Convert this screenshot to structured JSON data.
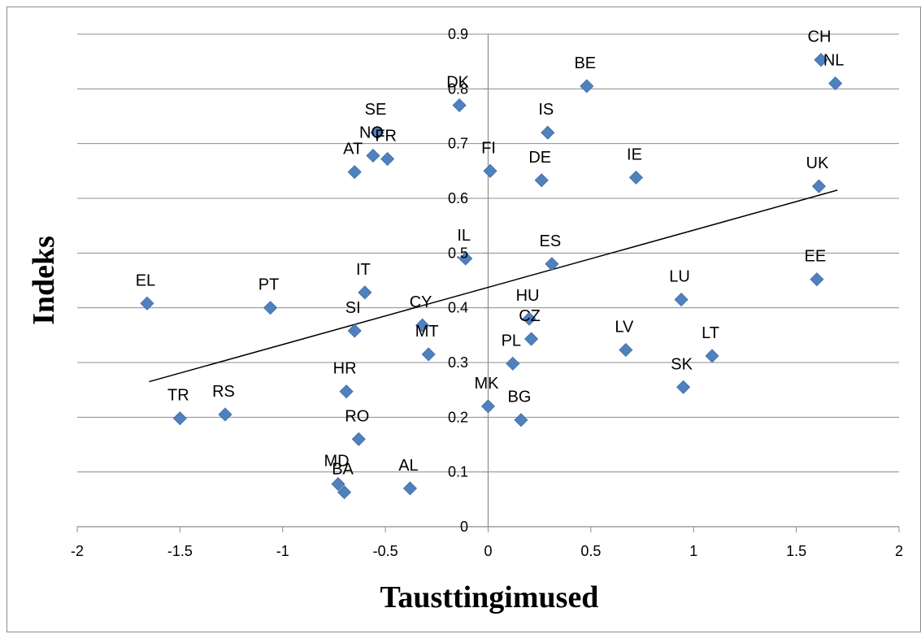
{
  "chart_data": {
    "type": "scatter",
    "title": "",
    "xlabel": "Tausttingimused",
    "ylabel": "Indeks",
    "xlim": [
      -2,
      2
    ],
    "ylim": [
      0,
      0.9
    ],
    "x_ticks": [
      "-2",
      "-1.5",
      "-1",
      "-0.5",
      "0",
      "0.5",
      "1",
      "1.5",
      "2"
    ],
    "y_ticks": [
      "0",
      "0.1",
      "0.2",
      "0.3",
      "0.4",
      "0.5",
      "0.6",
      "0.7",
      "0.8",
      "0.9"
    ],
    "grid": "horizontal",
    "marker_color": "#4f81bd",
    "trendline": {
      "x": [
        -1.65,
        1.7
      ],
      "y": [
        0.265,
        0.615
      ],
      "color": "#000000"
    },
    "points": [
      {
        "label": "CH",
        "x": 1.62,
        "y": 0.853
      },
      {
        "label": "NL",
        "x": 1.69,
        "y": 0.81
      },
      {
        "label": "BE",
        "x": 0.48,
        "y": 0.805
      },
      {
        "label": "DK",
        "x": -0.14,
        "y": 0.77
      },
      {
        "label": "IS",
        "x": 0.29,
        "y": 0.72
      },
      {
        "label": "SE",
        "x": -0.54,
        "y": 0.72
      },
      {
        "label": "NO",
        "x": -0.56,
        "y": 0.678
      },
      {
        "label": "FR",
        "x": -0.49,
        "y": 0.672
      },
      {
        "label": "AT",
        "x": -0.65,
        "y": 0.648
      },
      {
        "label": "FI",
        "x": 0.01,
        "y": 0.65
      },
      {
        "label": "DE",
        "x": 0.26,
        "y": 0.633
      },
      {
        "label": "IE",
        "x": 0.72,
        "y": 0.638
      },
      {
        "label": "UK",
        "x": 1.61,
        "y": 0.622
      },
      {
        "label": "IL",
        "x": -0.11,
        "y": 0.49
      },
      {
        "label": "ES",
        "x": 0.31,
        "y": 0.48
      },
      {
        "label": "EE",
        "x": 1.6,
        "y": 0.452
      },
      {
        "label": "EL",
        "x": -1.66,
        "y": 0.408
      },
      {
        "label": "PT",
        "x": -1.06,
        "y": 0.4
      },
      {
        "label": "IT",
        "x": -0.6,
        "y": 0.428
      },
      {
        "label": "LU",
        "x": 0.94,
        "y": 0.415
      },
      {
        "label": "CY",
        "x": -0.32,
        "y": 0.368
      },
      {
        "label": "HU",
        "x": 0.2,
        "y": 0.38
      },
      {
        "label": "SI",
        "x": -0.65,
        "y": 0.358
      },
      {
        "label": "CZ",
        "x": 0.21,
        "y": 0.343
      },
      {
        "label": "MT",
        "x": -0.29,
        "y": 0.315
      },
      {
        "label": "LV",
        "x": 0.67,
        "y": 0.323
      },
      {
        "label": "LT",
        "x": 1.09,
        "y": 0.312
      },
      {
        "label": "PL",
        "x": 0.12,
        "y": 0.298
      },
      {
        "label": "SK",
        "x": 0.95,
        "y": 0.255
      },
      {
        "label": "HR",
        "x": -0.69,
        "y": 0.247
      },
      {
        "label": "MK",
        "x": 0.0,
        "y": 0.22
      },
      {
        "label": "RS",
        "x": -1.28,
        "y": 0.205
      },
      {
        "label": "TR",
        "x": -1.5,
        "y": 0.198
      },
      {
        "label": "BG",
        "x": 0.16,
        "y": 0.195
      },
      {
        "label": "RO",
        "x": -0.63,
        "y": 0.16
      },
      {
        "label": "MD",
        "x": -0.73,
        "y": 0.078
      },
      {
        "label": "BA",
        "x": -0.7,
        "y": 0.063
      },
      {
        "label": "AL",
        "x": -0.38,
        "y": 0.07
      }
    ]
  }
}
